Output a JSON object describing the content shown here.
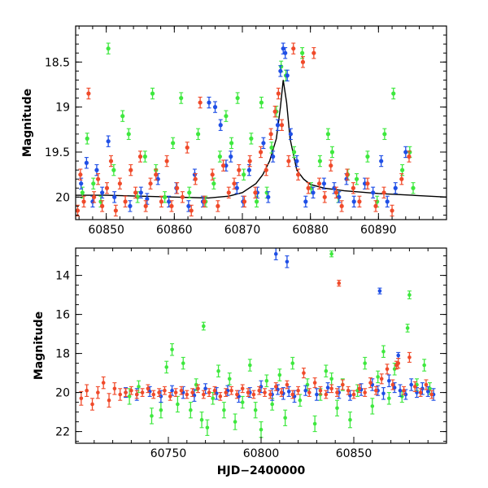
{
  "colors": {
    "blue": "#1f4fe6",
    "green": "#3ee83e",
    "red": "#f04a2a",
    "model": "#000000"
  },
  "chart_data": [
    {
      "type": "scatter",
      "title": "",
      "xlabel": "",
      "ylabel": "Magnitude",
      "xlim": [
        60845.5,
        60900
      ],
      "ylim": [
        20.25,
        18.1
      ],
      "y_inverted": true,
      "x_ticks": [
        60850,
        60860,
        60870,
        60880,
        60890
      ],
      "y_ticks": [
        18.5,
        19,
        19.5,
        20
      ],
      "x_tick_labels": [
        "60850",
        "60860",
        "60870",
        "60880",
        "60890"
      ],
      "y_tick_labels": [
        "18.5",
        "19",
        "19.5",
        "20"
      ],
      "grid": false,
      "legend": "none",
      "series": [
        {
          "color": "blue",
          "x": [
            60846.3,
            60847.1,
            60848.0,
            60848.6,
            60849.4,
            60850.3,
            60851.2,
            60853.5,
            60855.1,
            60856.0,
            60857.6,
            60859.2,
            60860.3,
            60862.1,
            60863.0,
            60864.2,
            60865.1,
            60866.0,
            60866.8,
            60867.6,
            60868.3,
            60869.2,
            60870.1,
            60871.0,
            60872.2,
            60873.1,
            60873.8,
            60874.5,
            60875.2,
            60875.6,
            60876.0,
            60876.3,
            60876.6,
            60877.1,
            60878.0,
            60879.3,
            60880.4,
            60882.0,
            60883.5,
            60884.2,
            60885.3,
            60886.4,
            60888.0,
            60889.2,
            60890.4,
            60891.3,
            60892.5,
            60894.0
          ],
          "y": [
            19.85,
            19.62,
            20.05,
            19.7,
            19.95,
            19.38,
            20.0,
            20.1,
            19.95,
            20.02,
            19.8,
            20.05,
            19.9,
            20.1,
            19.75,
            20.05,
            18.95,
            19.0,
            19.2,
            19.65,
            19.55,
            19.9,
            20.05,
            19.7,
            19.95,
            19.4,
            20.0,
            19.55,
            19.2,
            18.6,
            18.35,
            18.4,
            18.65,
            19.3,
            19.6,
            20.05,
            19.95,
            19.85,
            19.9,
            20.0,
            19.8,
            20.05,
            19.85,
            19.95,
            19.6,
            20.05,
            19.9,
            19.5
          ]
        },
        {
          "color": "green",
          "x": [
            60846.5,
            60847.2,
            60848.1,
            60849.2,
            60850.3,
            60851.1,
            60852.4,
            60853.3,
            60854.6,
            60855.7,
            60856.8,
            60857.3,
            60858.6,
            60859.8,
            60861.0,
            60862.2,
            60863.5,
            60864.6,
            60865.8,
            60866.7,
            60867.6,
            60868.4,
            60869.3,
            60870.2,
            60871.3,
            60872.1,
            60872.8,
            60873.6,
            60874.3,
            60875.0,
            60875.7,
            60876.4,
            60877.6,
            60878.8,
            60880.1,
            60881.4,
            60882.6,
            60883.2,
            60884.1,
            60885.5,
            60886.8,
            60888.4,
            60889.8,
            60890.9,
            60892.2,
            60893.5,
            60894.6,
            60895.1
          ],
          "y": [
            19.95,
            19.35,
            19.85,
            20.05,
            18.35,
            19.7,
            19.1,
            19.3,
            20.0,
            19.55,
            18.85,
            19.7,
            20.0,
            19.4,
            18.9,
            19.95,
            19.3,
            20.05,
            19.85,
            19.55,
            19.1,
            19.4,
            18.9,
            19.75,
            19.35,
            20.05,
            18.95,
            19.95,
            19.45,
            19.05,
            18.55,
            18.65,
            19.5,
            18.4,
            19.9,
            19.6,
            19.3,
            19.5,
            20.0,
            19.75,
            19.8,
            19.55,
            20.05,
            19.3,
            18.85,
            19.7,
            19.5,
            19.9
          ]
        },
        {
          "color": "red",
          "x": [
            60845.8,
            60846.2,
            60846.7,
            60847.4,
            60848.2,
            60848.8,
            60849.4,
            60850.1,
            60850.7,
            60851.4,
            60852.0,
            60852.8,
            60853.6,
            60854.3,
            60855.0,
            60855.8,
            60856.5,
            60857.3,
            60858.1,
            60858.9,
            60859.6,
            60860.4,
            60861.2,
            60861.9,
            60862.5,
            60863.1,
            60863.8,
            60864.4,
            60865.6,
            60866.4,
            60867.2,
            60868.0,
            60868.8,
            60869.5,
            60870.3,
            60871.1,
            60871.9,
            60872.7,
            60873.5,
            60874.2,
            60874.8,
            60875.3,
            60875.8,
            60876.8,
            60877.5,
            60878.2,
            60878.9,
            60879.7,
            60880.5,
            60881.3,
            60882.1,
            60883.0,
            60883.8,
            60884.6,
            60885.4,
            60886.3,
            60887.2,
            60888.4,
            60889.6,
            60890.8,
            60892.0,
            60893.4,
            60894.5
          ],
          "y": [
            20.15,
            19.75,
            20.05,
            18.85,
            20.0,
            19.8,
            20.1,
            19.9,
            19.6,
            20.15,
            19.85,
            20.05,
            19.7,
            19.95,
            19.55,
            20.1,
            19.85,
            19.75,
            20.05,
            19.6,
            20.1,
            19.9,
            20.0,
            19.45,
            20.15,
            19.8,
            18.95,
            20.05,
            19.75,
            20.1,
            19.65,
            19.95,
            19.85,
            19.7,
            20.05,
            19.6,
            19.95,
            19.5,
            19.7,
            19.3,
            19.05,
            18.85,
            19.2,
            19.6,
            18.35,
            19.75,
            18.5,
            19.9,
            18.4,
            19.85,
            20.0,
            19.65,
            19.95,
            20.1,
            19.75,
            19.9,
            20.05,
            19.85,
            20.1,
            19.95,
            20.15,
            19.8,
            19.55
          ]
        }
      ],
      "model_curve": {
        "x": [
          60845.5,
          60850,
          60855,
          60860,
          60865,
          60868,
          60870,
          60872,
          60873,
          60874,
          60875,
          60875.6,
          60876,
          60876.5,
          60877,
          60878,
          60879,
          60880,
          60882,
          60885,
          60890,
          60895,
          60900
        ],
        "y": [
          19.98,
          19.98,
          19.99,
          20.0,
          20.01,
          19.99,
          19.95,
          19.85,
          19.75,
          19.6,
          19.35,
          19.0,
          18.7,
          18.95,
          19.35,
          19.7,
          19.8,
          19.86,
          19.9,
          19.93,
          19.96,
          19.98,
          20.0
        ]
      }
    },
    {
      "type": "scatter",
      "title": "",
      "xlabel": "HJD−2400000",
      "ylabel": "Magnitude",
      "xlim": [
        60700,
        60900
      ],
      "ylim": [
        22.6,
        12.6
      ],
      "y_inverted": true,
      "x_ticks": [
        60750,
        60800,
        60850
      ],
      "y_ticks": [
        14,
        16,
        18,
        20,
        22
      ],
      "x_tick_labels": [
        "60750",
        "60800",
        "60850"
      ],
      "y_tick_labels": [
        "14",
        "16",
        "18",
        "20",
        "22"
      ],
      "grid": false,
      "legend": "none",
      "series": [
        {
          "color": "blue",
          "x": [
            60727,
            60733,
            60740,
            60746,
            60752,
            60758,
            60764,
            60770,
            60776,
            60782,
            60788,
            60794,
            60800,
            60806,
            60809,
            60812,
            60815,
            60818,
            60824,
            60830,
            60836,
            60842,
            60848,
            60854,
            60860,
            60863,
            60866,
            60869,
            60872,
            60875,
            60878,
            60881,
            60884,
            60887,
            60890,
            60893,
            60808,
            60814,
            60864,
            60874
          ],
          "y": [
            20.0,
            20.1,
            19.95,
            20.2,
            19.9,
            20.0,
            20.15,
            19.8,
            20.05,
            19.9,
            20.2,
            20.0,
            19.7,
            20.1,
            19.85,
            20.05,
            19.95,
            20.2,
            19.9,
            20.1,
            19.75,
            20.0,
            20.15,
            19.85,
            19.6,
            19.9,
            20.05,
            19.4,
            19.75,
            19.9,
            20.1,
            19.6,
            20.0,
            19.8,
            19.95,
            20.1,
            12.9,
            13.3,
            14.8,
            18.1
          ],
          "errors": [
            0.25,
            0.3,
            0.25,
            0.3,
            0.25,
            0.3,
            0.3,
            0.25,
            0.3,
            0.25,
            0.3,
            0.25,
            0.3,
            0.3,
            0.25,
            0.3,
            0.25,
            0.3,
            0.25,
            0.3,
            0.25,
            0.3,
            0.25,
            0.3,
            0.3,
            0.25,
            0.3,
            0.3,
            0.25,
            0.3,
            0.25,
            0.3,
            0.25,
            0.3,
            0.25,
            0.3,
            0.3,
            0.3,
            0.15,
            0.15
          ]
        },
        {
          "color": "green",
          "x": [
            60729,
            60734,
            60741,
            60746,
            60749,
            60752,
            60755,
            60758,
            60762,
            60765,
            60768,
            60771,
            60774,
            60777,
            60780,
            60783,
            60786,
            60790,
            60794,
            60797,
            60800,
            60803,
            60806,
            60810,
            60813,
            60817,
            60821,
            60825,
            60829,
            60832,
            60835,
            60838,
            60841,
            60844,
            60848,
            60852,
            60856,
            60860,
            60863,
            60866,
            60869,
            60872,
            60876,
            60880,
            60884,
            60888,
            60891,
            60769,
            60838,
            60879
          ],
          "y": [
            20.2,
            19.7,
            21.2,
            20.9,
            18.7,
            17.8,
            20.6,
            18.5,
            20.9,
            19.6,
            21.4,
            21.8,
            20.3,
            18.9,
            20.9,
            19.3,
            21.5,
            20.5,
            18.6,
            20.9,
            21.9,
            19.4,
            20.6,
            19.1,
            21.3,
            18.5,
            20.4,
            19.6,
            21.6,
            20.1,
            18.9,
            19.3,
            20.8,
            19.6,
            21.4,
            19.9,
            18.5,
            20.7,
            19.2,
            17.9,
            20.3,
            18.8,
            20.2,
            15.0,
            19.6,
            18.6,
            19.8,
            16.6,
            12.9,
            16.7
          ],
          "errors": [
            0.4,
            0.3,
            0.4,
            0.4,
            0.3,
            0.3,
            0.4,
            0.3,
            0.4,
            0.3,
            0.4,
            0.4,
            0.3,
            0.3,
            0.4,
            0.3,
            0.4,
            0.3,
            0.3,
            0.4,
            0.4,
            0.3,
            0.3,
            0.3,
            0.4,
            0.3,
            0.3,
            0.3,
            0.4,
            0.3,
            0.3,
            0.3,
            0.4,
            0.3,
            0.4,
            0.3,
            0.3,
            0.4,
            0.3,
            0.3,
            0.3,
            0.3,
            0.3,
            0.2,
            0.3,
            0.3,
            0.3,
            0.2,
            0.15,
            0.2
          ]
        },
        {
          "color": "red",
          "x": [
            60703,
            60706,
            60709,
            60712,
            60715,
            60718,
            60721,
            60724,
            60727,
            60730,
            60733,
            60736,
            60739,
            60742,
            60745,
            60748,
            60751,
            60754,
            60757,
            60760,
            60763,
            60766,
            60769,
            60772,
            60775,
            60778,
            60781,
            60784,
            60787,
            60790,
            60793,
            60796,
            60799,
            60802,
            60805,
            60808,
            60811,
            60814,
            60817,
            60820,
            60823,
            60826,
            60829,
            60832,
            60835,
            60838,
            60841,
            60844,
            60847,
            60850,
            60853,
            60856,
            60859,
            60862,
            60865,
            60868,
            60871,
            60874,
            60877,
            60880,
            60883,
            60886,
            60889,
            60892,
            60842,
            60873
          ],
          "y": [
            20.3,
            19.9,
            20.6,
            20.0,
            19.5,
            20.4,
            19.8,
            20.1,
            20.0,
            19.9,
            20.1,
            20.0,
            19.8,
            20.1,
            20.0,
            19.9,
            20.2,
            20.0,
            19.9,
            20.1,
            20.0,
            19.8,
            20.1,
            20.0,
            19.9,
            20.2,
            20.0,
            19.9,
            20.1,
            19.8,
            20.0,
            20.1,
            19.9,
            20.0,
            20.1,
            19.7,
            20.0,
            19.6,
            20.1,
            19.9,
            19.0,
            20.0,
            19.5,
            19.9,
            20.1,
            19.8,
            20.0,
            19.6,
            19.9,
            20.1,
            19.8,
            20.0,
            19.5,
            19.9,
            19.3,
            18.8,
            19.6,
            18.5,
            19.9,
            18.2,
            19.7,
            20.0,
            19.6,
            20.1,
            14.4,
            18.6
          ],
          "errors": [
            0.35,
            0.3,
            0.3,
            0.3,
            0.3,
            0.35,
            0.3,
            0.3,
            0.2,
            0.2,
            0.2,
            0.2,
            0.2,
            0.2,
            0.2,
            0.2,
            0.2,
            0.2,
            0.2,
            0.2,
            0.2,
            0.2,
            0.2,
            0.2,
            0.2,
            0.2,
            0.2,
            0.2,
            0.2,
            0.2,
            0.2,
            0.2,
            0.2,
            0.2,
            0.2,
            0.2,
            0.2,
            0.2,
            0.2,
            0.2,
            0.25,
            0.2,
            0.25,
            0.2,
            0.2,
            0.2,
            0.2,
            0.25,
            0.2,
            0.2,
            0.2,
            0.2,
            0.25,
            0.2,
            0.25,
            0.25,
            0.25,
            0.25,
            0.2,
            0.25,
            0.25,
            0.2,
            0.25,
            0.2,
            0.15,
            0.2
          ]
        }
      ]
    }
  ]
}
